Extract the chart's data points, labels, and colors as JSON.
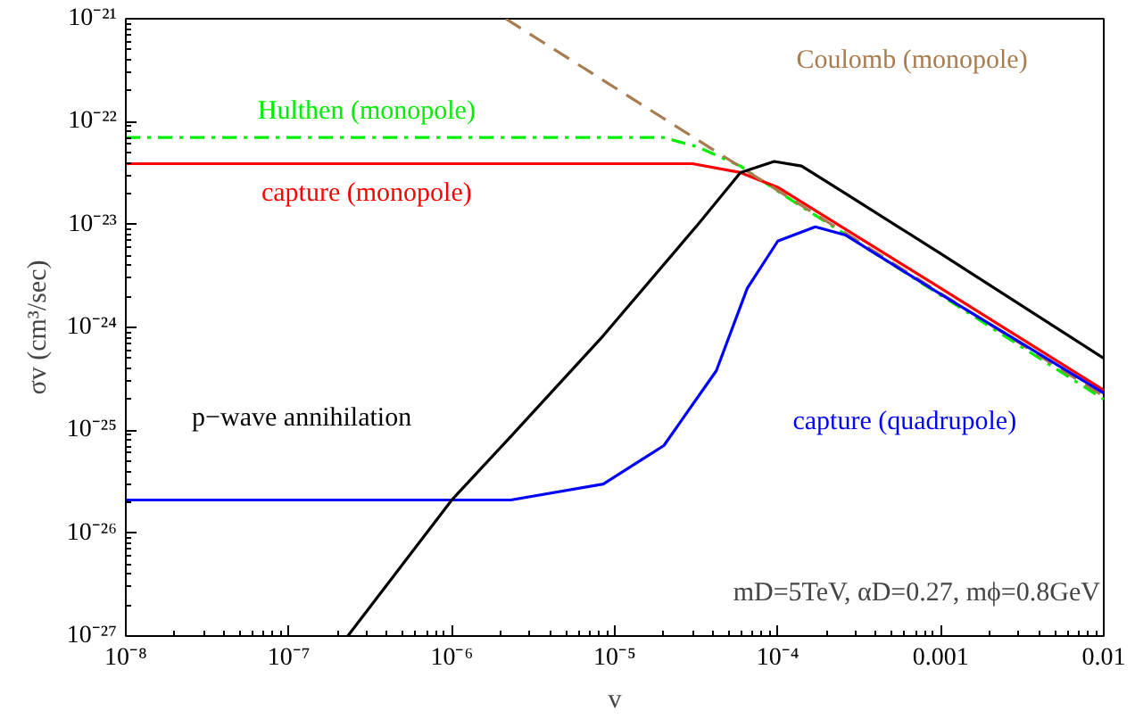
{
  "chart_data": {
    "type": "line",
    "xlabel": "v",
    "ylabel": "σv (cm³/sec)",
    "log": "xy",
    "grid": false,
    "marker": "none",
    "xlim": [
      1e-08,
      0.01
    ],
    "ylim": [
      1e-27,
      1e-21
    ],
    "xticks": [
      {
        "value": 1e-08,
        "label": "10⁻⁸"
      },
      {
        "value": 1e-07,
        "label": "10⁻⁷"
      },
      {
        "value": 1e-06,
        "label": "10⁻⁶"
      },
      {
        "value": 1e-05,
        "label": "10⁻⁵"
      },
      {
        "value": 0.0001,
        "label": "10⁻⁴"
      },
      0.001,
      0.01
    ],
    "yticks": [
      {
        "value": 1e-27,
        "label": "10⁻²⁷"
      },
      {
        "value": 1e-26,
        "label": "10⁻²⁶"
      },
      {
        "value": 1e-25,
        "label": "10⁻²⁵"
      },
      {
        "value": 1e-24,
        "label": "10⁻²⁴"
      },
      {
        "value": 1e-23,
        "label": "10⁻²³"
      },
      {
        "value": 1e-22,
        "label": "10⁻²²"
      },
      {
        "value": 1e-21,
        "label": "10⁻²¹"
      }
    ],
    "series": [
      {
        "name": "Hulthen (monopole)",
        "color": "#00ee00",
        "line_style": "dashdot",
        "x": [
          1e-08,
          2e-05,
          3.2e-05,
          5.9e-05,
          0.0001,
          0.001,
          0.01
        ],
        "values": [
          7e-23,
          7e-23,
          5.7e-23,
          3.7e-23,
          2.1e-23,
          2.05e-24,
          2e-25
        ]
      },
      {
        "name": "capture (monopole)",
        "color": "#ff0000",
        "line_style": "solid",
        "x": [
          1e-08,
          3e-05,
          5.9e-05,
          0.0001,
          0.001,
          0.01
        ],
        "values": [
          3.9e-23,
          3.9e-23,
          3.2e-23,
          2.3e-23,
          2.4e-24,
          2.45e-25
        ]
      },
      {
        "name": "Coulomb (monopole)",
        "color": "#a87c4f",
        "line_style": "dashed",
        "x": [
          2.14e-06,
          0.01
        ],
        "values": [
          1e-21,
          2.14e-25
        ]
      },
      {
        "name": "capture (quadrupole)",
        "color": "#0000ff",
        "line_style": "solid",
        "x": [
          1e-08,
          2.3e-06,
          8.5e-06,
          2e-05,
          4.2e-05,
          6.5e-05,
          0.0001,
          0.00017,
          0.00026,
          0.001,
          0.01
        ],
        "values": [
          2.1e-26,
          2.1e-26,
          3e-26,
          7.1e-26,
          3.8e-25,
          2.4e-24,
          6.9e-24,
          9.5e-24,
          7.9e-24,
          2.1e-24,
          2.3e-25
        ]
      },
      {
        "name": "p−wave annihilation",
        "color": "#000000",
        "line_style": "solid",
        "x": [
          2.3e-07,
          1e-06,
          2.3e-06,
          8.5e-06,
          3.2e-05,
          5.9e-05,
          9.5e-05,
          0.00014,
          0.00026,
          0.001,
          0.01
        ],
        "values": [
          1e-27,
          2.1e-26,
          8.7e-26,
          8.3e-25,
          9.8e-24,
          3.2e-23,
          4.1e-23,
          3.7e-23,
          2e-23,
          5.2e-24,
          5e-25
        ]
      }
    ],
    "annotations": [
      "mD=5TeV, αD=0.27, mϕ=0.8GeV"
    ]
  }
}
